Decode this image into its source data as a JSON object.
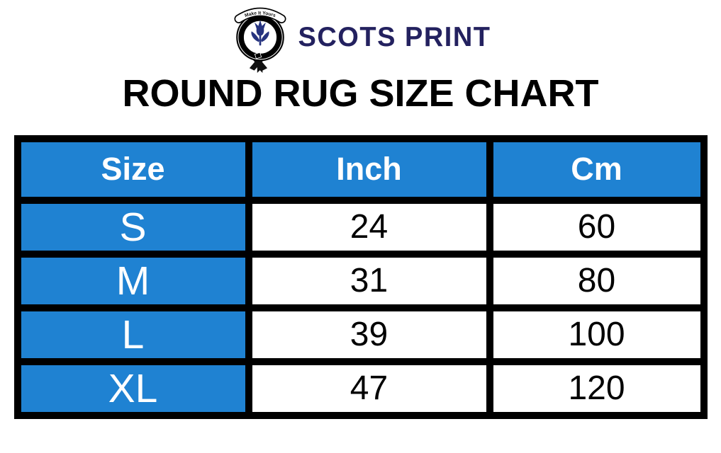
{
  "logo": {
    "brand": "SCOTS PRINT",
    "crest_motto": "Make It Yours"
  },
  "title": "ROUND RUG SIZE CHART",
  "chart_data": {
    "type": "table",
    "title": "ROUND RUG SIZE CHART",
    "columns": [
      "Size",
      "Inch",
      "Cm"
    ],
    "rows": [
      {
        "size": "S",
        "inch": "24",
        "cm": "60"
      },
      {
        "size": "M",
        "inch": "31",
        "cm": "80"
      },
      {
        "size": "L",
        "inch": "39",
        "cm": "100"
      },
      {
        "size": "XL",
        "inch": "47",
        "cm": "120"
      }
    ]
  },
  "colors": {
    "accent_blue": "#1f82d2",
    "brand_navy": "#23215f",
    "border_black": "#000000"
  }
}
